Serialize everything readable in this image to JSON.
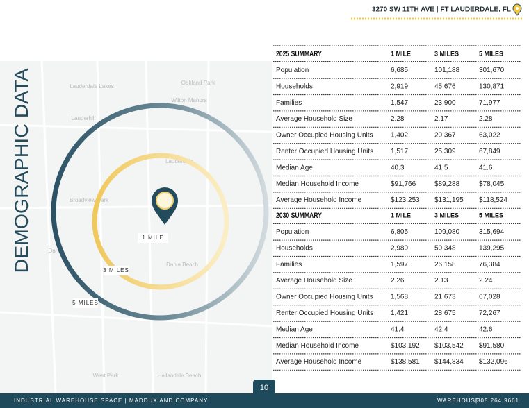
{
  "header": {
    "address": "3270 SW 11TH AVE | FT LAUDERDALE, FL"
  },
  "title": "DEMOGRAPHIC DATA",
  "map_labels": [
    "Oakland Park",
    "Lauderdale Lakes",
    "Wilton Manors",
    "Lauderhill",
    "Lauderdale",
    "Broadview Park",
    "Dania",
    "Dania Beach",
    "West Park",
    "Hallandale Beach"
  ],
  "rings": [
    "1 MILE",
    "3 MILES",
    "5 MILES"
  ],
  "tables": [
    {
      "title": "2025 SUMMARY",
      "columns": [
        "1 MILE",
        "3 MILES",
        "5 MILES"
      ],
      "rows": [
        [
          "Population",
          "6,685",
          "101,188",
          "301,670"
        ],
        [
          "Households",
          "2,919",
          "45,676",
          "130,871"
        ],
        [
          "Families",
          "1,547",
          "23,900",
          "71,977"
        ],
        [
          "Average Household Size",
          "2.28",
          "2.17",
          "2.28"
        ],
        [
          "Owner Occupied Housing Units",
          "1,402",
          "20,367",
          "63,022"
        ],
        [
          "Renter Occupied Housing Units",
          "1,517",
          "25,309",
          "67,849"
        ],
        [
          "Median Age",
          "40.3",
          "41.5",
          "41.6"
        ],
        [
          "Median Household Income",
          "$91,766",
          "$89,288",
          "$78,045"
        ],
        [
          "Average Household Income",
          "$123,253",
          "$131,195",
          "$118,524"
        ]
      ]
    },
    {
      "title": "2030 SUMMARY",
      "columns": [
        "1 MILE",
        "3 MILES",
        "5 MILES"
      ],
      "rows": [
        [
          "Population",
          "6,805",
          "109,080",
          "315,694"
        ],
        [
          "Households",
          "2,989",
          "50,348",
          "139,295"
        ],
        [
          "Families",
          "1,597",
          "26,158",
          "76,384"
        ],
        [
          "Average Household Size",
          "2.26",
          "2.13",
          "2.24"
        ],
        [
          "Owner Occupied Housing Units",
          "1,568",
          "21,673",
          "67,028"
        ],
        [
          "Renter Occupied Housing Units",
          "1,421",
          "28,675",
          "72,267"
        ],
        [
          "Median Age",
          "41.4",
          "42.4",
          "42.6"
        ],
        [
          "Median Household Income",
          "$103,192",
          "$103,542",
          "$91,580"
        ],
        [
          "Average Household Income",
          "$138,581",
          "$144,834",
          "$132,096"
        ]
      ]
    }
  ],
  "footer": {
    "left": "INDUSTRIAL WAREHOUSE SPACE | MADDUX AND COMPANY",
    "page": "10",
    "right_label": "WAREHOUSE",
    "separator": "|",
    "phone": "305.264.9661"
  }
}
